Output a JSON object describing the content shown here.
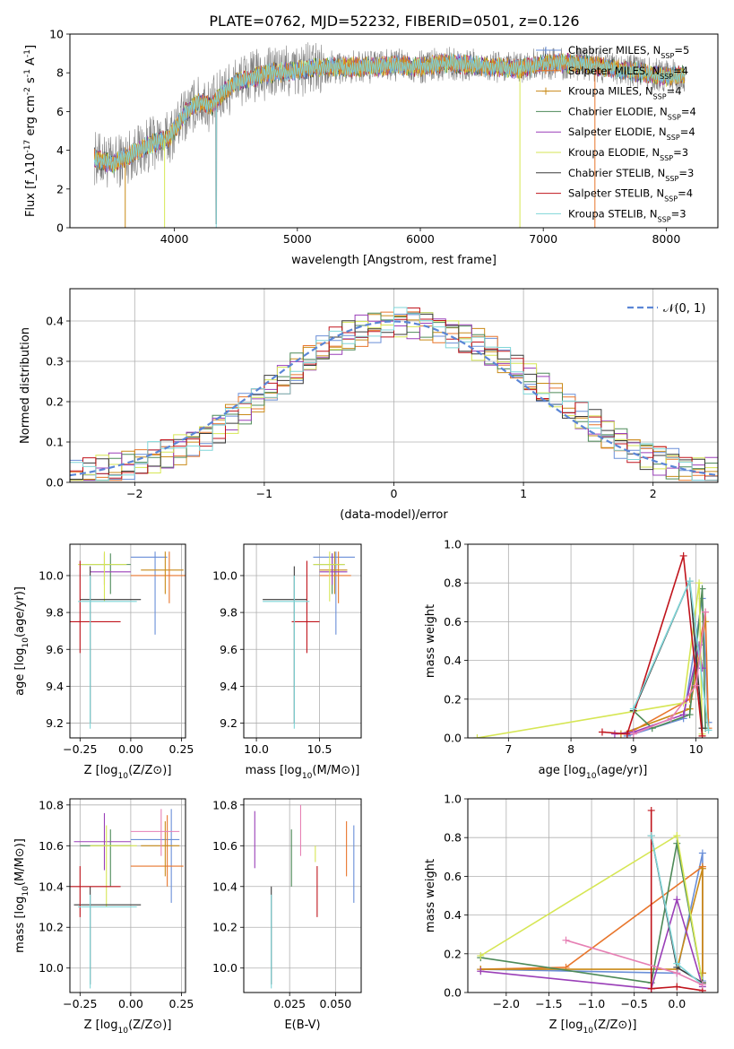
{
  "figure_title": "PLATE=0762, MJD=52232, FIBERID=0501, z=0.126",
  "colors": {
    "chabrier_miles": "#6a8fd8",
    "salpeter_miles": "#e8762c",
    "kroupa_miles": "#c98a18",
    "chabrier_elodie": "#4d8a58",
    "salpeter_elodie": "#9a3fb8",
    "kroupa_elodie": "#d6e654",
    "chabrier_stelib": "#3a3a3a",
    "salpeter_stelib": "#c0141c",
    "kroupa_stelib": "#7fd6d8",
    "pink": "#e680b4",
    "data_gray": "#808080",
    "normal_curve": "#5b86d6",
    "grid": "#b0b0b0"
  },
  "chart_data": [
    {
      "id": "spectrum",
      "type": "line",
      "title": "PLATE=0762, MJD=52232, FIBERID=0501, z=0.126",
      "xlabel": "wavelength [Angstrom, rest frame]",
      "ylabel": "Flux [f_λ10^-17 erg cm^-2 s^-1 A^-1]",
      "xlim": [
        3150,
        8420
      ],
      "ylim": [
        0,
        10
      ],
      "xticks": [
        "4000",
        "5000",
        "6000",
        "7000",
        "8000"
      ],
      "yticks": [
        "0",
        "2",
        "4",
        "6",
        "8",
        "10"
      ],
      "grid": false,
      "legend_position": "top-right",
      "continuum": {
        "x": [
          3350,
          3500,
          3650,
          3800,
          3950,
          4100,
          4200,
          4300,
          4400,
          4500,
          4600,
          4800,
          5000,
          5200,
          5400,
          5600,
          5800,
          6000,
          6200,
          6400,
          6600,
          6800,
          7000,
          7200,
          7400,
          7600,
          7800,
          8000,
          8150
        ],
        "y": [
          3.6,
          3.3,
          3.8,
          4.3,
          4.6,
          6.0,
          6.5,
          6.3,
          7.0,
          7.5,
          7.7,
          8.0,
          8.1,
          8.3,
          8.3,
          8.3,
          8.4,
          8.3,
          8.5,
          8.4,
          8.3,
          8.2,
          8.5,
          8.5,
          8.4,
          8.2,
          8.0,
          7.8,
          7.9
        ]
      },
      "legend": [
        {
          "label": "Chabrier MILES, N_SSP=5",
          "color_key": "chabrier_miles",
          "marker": true
        },
        {
          "label": "Salpeter MILES, N_SSP=4",
          "color_key": "salpeter_miles",
          "marker": true
        },
        {
          "label": "Kroupa MILES, N_SSP=4",
          "color_key": "kroupa_miles",
          "marker": true
        },
        {
          "label": "Chabrier ELODIE, N_SSP=4",
          "color_key": "chabrier_elodie",
          "marker": false
        },
        {
          "label": "Salpeter ELODIE, N_SSP=4",
          "color_key": "salpeter_elodie",
          "marker": false
        },
        {
          "label": "Kroupa ELODIE, N_SSP=3",
          "color_key": "kroupa_elodie",
          "marker": false
        },
        {
          "label": "Chabrier STELIB, N_SSP=3",
          "color_key": "chabrier_stelib",
          "marker": false
        },
        {
          "label": "Salpeter STELIB, N_SSP=4",
          "color_key": "salpeter_stelib",
          "marker": false
        },
        {
          "label": "Kroupa STELIB, N_SSP=3",
          "color_key": "kroupa_stelib",
          "marker": false
        }
      ]
    },
    {
      "id": "residuals",
      "type": "line",
      "xlabel": "(data-model)/error",
      "ylabel": "Normed distribution",
      "xlim": [
        -2.5,
        2.5
      ],
      "ylim": [
        0,
        0.48
      ],
      "xticks": [
        "−2",
        "−1",
        "0",
        "1",
        "2"
      ],
      "yticks": [
        "0.0",
        "0.1",
        "0.2",
        "0.3",
        "0.4"
      ],
      "grid": true,
      "legend_position": "top-right",
      "legend": [
        {
          "label": "𝒩(0, 1)",
          "color_key": "normal_curve"
        }
      ],
      "bin_width": 0.1,
      "series": [
        {
          "color_key": "chabrier_miles",
          "phase": 0.3
        },
        {
          "color_key": "salpeter_miles",
          "phase": 1.1
        },
        {
          "color_key": "kroupa_miles",
          "phase": 2.0
        },
        {
          "color_key": "chabrier_elodie",
          "phase": 2.7
        },
        {
          "color_key": "salpeter_elodie",
          "phase": 3.5
        },
        {
          "color_key": "kroupa_elodie",
          "phase": 4.4
        },
        {
          "color_key": "chabrier_stelib",
          "phase": 5.1
        },
        {
          "color_key": "salpeter_stelib",
          "phase": 5.9
        },
        {
          "color_key": "kroupa_stelib",
          "phase": 6.6
        }
      ]
    },
    {
      "id": "age-vs-Z",
      "type": "errorbar",
      "xlabel": "Z [log10(Z/Z⊙)]",
      "ylabel": "age  [log10(age/yr)]",
      "xlim": [
        -0.3,
        0.27
      ],
      "ylim": [
        9.12,
        10.17
      ],
      "xticks": [
        "−0.25",
        "0.00",
        "0.25"
      ],
      "yticks": [
        "9.2",
        "9.4",
        "9.6",
        "9.8",
        "10.0"
      ],
      "grid": true,
      "points": [
        {
          "c": "chabrier_miles",
          "x": 0.12,
          "xl": 0.0,
          "xh": 0.18,
          "y": 10.1,
          "yl": 9.68,
          "yh": 10.13
        },
        {
          "c": "salpeter_miles",
          "x": 0.19,
          "xl": 0.0,
          "xh": 0.27,
          "y": 10.0,
          "yl": 9.85,
          "yh": 10.13
        },
        {
          "c": "kroupa_miles",
          "x": 0.17,
          "xl": 0.05,
          "xh": 0.26,
          "y": 10.03,
          "yl": 9.9,
          "yh": 10.13
        },
        {
          "c": "chabrier_elodie",
          "x": -0.1,
          "xl": -0.25,
          "xh": 0.0,
          "y": 10.06,
          "yl": 9.9,
          "yh": 10.12
        },
        {
          "c": "salpeter_elodie",
          "x": -0.13,
          "xl": -0.2,
          "xh": 0.0,
          "y": 10.02,
          "yl": 9.95,
          "yh": 10.12
        },
        {
          "c": "kroupa_elodie",
          "x": -0.13,
          "xl": -0.26,
          "xh": -0.02,
          "y": 10.06,
          "yl": 9.86,
          "yh": 10.13
        },
        {
          "c": "chabrier_stelib",
          "x": -0.2,
          "xl": -0.25,
          "xh": 0.05,
          "y": 9.87,
          "yl": 9.2,
          "yh": 10.05
        },
        {
          "c": "salpeter_stelib",
          "x": -0.25,
          "xl": -0.3,
          "xh": -0.05,
          "y": 9.75,
          "yl": 9.58,
          "yh": 10.08
        },
        {
          "c": "kroupa_stelib",
          "x": -0.2,
          "xl": -0.26,
          "xh": 0.03,
          "y": 9.86,
          "yl": 9.17,
          "yh": 10.0
        }
      ]
    },
    {
      "id": "age-vs-mass",
      "type": "errorbar",
      "xlabel": "mass [log10(M/M⊙)]",
      "ylabel": "",
      "xlim": [
        9.9,
        10.83
      ],
      "ylim": [
        9.12,
        10.17
      ],
      "xticks": [
        "10.0",
        "10.5"
      ],
      "yticks": [
        "9.2",
        "9.4",
        "9.6",
        "9.8",
        "10.0"
      ],
      "grid": true,
      "points": [
        {
          "c": "chabrier_miles",
          "x": 10.63,
          "xl": 10.45,
          "xh": 10.78,
          "y": 10.1,
          "yl": 9.68,
          "yh": 10.13
        },
        {
          "c": "salpeter_miles",
          "x": 10.65,
          "xl": 10.5,
          "xh": 10.75,
          "y": 10.0,
          "yl": 9.85,
          "yh": 10.13
        },
        {
          "c": "kroupa_miles",
          "x": 10.62,
          "xl": 10.5,
          "xh": 10.72,
          "y": 10.03,
          "yl": 9.9,
          "yh": 10.13
        },
        {
          "c": "chabrier_elodie",
          "x": 10.6,
          "xl": 10.45,
          "xh": 10.7,
          "y": 10.06,
          "yl": 9.9,
          "yh": 10.12
        },
        {
          "c": "salpeter_elodie",
          "x": 10.6,
          "xl": 10.5,
          "xh": 10.72,
          "y": 10.02,
          "yl": 9.95,
          "yh": 10.12
        },
        {
          "c": "kroupa_elodie",
          "x": 10.58,
          "xl": 10.45,
          "xh": 10.7,
          "y": 10.06,
          "yl": 9.86,
          "yh": 10.13
        },
        {
          "c": "chabrier_stelib",
          "x": 10.3,
          "xl": 10.05,
          "xh": 10.4,
          "y": 9.87,
          "yl": 9.2,
          "yh": 10.05
        },
        {
          "c": "salpeter_stelib",
          "x": 10.4,
          "xl": 10.28,
          "xh": 10.5,
          "y": 9.75,
          "yl": 9.58,
          "yh": 10.08
        },
        {
          "c": "kroupa_stelib",
          "x": 10.3,
          "xl": 10.05,
          "xh": 10.42,
          "y": 9.86,
          "yl": 9.17,
          "yh": 10.0
        }
      ]
    },
    {
      "id": "weight-vs-age",
      "type": "line",
      "xlabel": "age  [log10(age/yr)]",
      "ylabel": "mass weight",
      "xlim": [
        6.35,
        10.35
      ],
      "ylim": [
        0,
        1
      ],
      "xticks": [
        "7",
        "8",
        "9",
        "10"
      ],
      "yticks": [
        "0.0",
        "0.2",
        "0.4",
        "0.6",
        "0.8",
        "1.0"
      ],
      "grid": true,
      "series": [
        {
          "c": "chabrier_miles",
          "x": [
            8.9,
            9.8,
            10.1,
            10.2
          ],
          "y": [
            0.01,
            0.1,
            0.72,
            0.08
          ]
        },
        {
          "c": "salpeter_miles",
          "x": [
            8.9,
            9.9,
            10.15,
            10.2
          ],
          "y": [
            0.02,
            0.2,
            0.65,
            0.05
          ]
        },
        {
          "c": "kroupa_miles",
          "x": [
            8.8,
            9.9,
            10.15
          ],
          "y": [
            0.02,
            0.15,
            0.6
          ]
        },
        {
          "c": "chabrier_elodie",
          "x": [
            9.0,
            9.3,
            9.9,
            10.1,
            10.15
          ],
          "y": [
            0.14,
            0.05,
            0.12,
            0.77,
            0.05
          ]
        },
        {
          "c": "salpeter_elodie",
          "x": [
            8.7,
            9.0,
            9.8,
            10.05,
            10.1
          ],
          "y": [
            0.02,
            0.03,
            0.12,
            0.48,
            0.36
          ]
        },
        {
          "c": "kroupa_elodie",
          "x": [
            6.5,
            9.8,
            10.05,
            10.1
          ],
          "y": [
            0.0,
            0.18,
            0.8,
            0.02
          ]
        },
        {
          "c": "chabrier_stelib",
          "x": [
            9.0,
            9.9,
            10.1
          ],
          "y": [
            0.14,
            0.81,
            0.05
          ]
        },
        {
          "c": "salpeter_stelib",
          "x": [
            8.5,
            8.9,
            9.8,
            10.1
          ],
          "y": [
            0.03,
            0.02,
            0.94,
            0.01
          ]
        },
        {
          "c": "kroupa_stelib",
          "x": [
            9.0,
            9.9,
            10.2
          ],
          "y": [
            0.15,
            0.81,
            0.04
          ]
        },
        {
          "c": "pink",
          "x": [
            9.0,
            9.6,
            10.0,
            10.15
          ],
          "y": [
            0.02,
            0.1,
            0.27,
            0.65
          ]
        }
      ]
    },
    {
      "id": "mass-vs-Z",
      "type": "errorbar",
      "xlabel": "Z [log10(Z/Z⊙)]",
      "ylabel": "mass [log10(M/M⊙)]",
      "xlim": [
        -0.3,
        0.27
      ],
      "ylim": [
        9.88,
        10.83
      ],
      "xticks": [
        "−0.25",
        "0.00",
        "0.25"
      ],
      "yticks": [
        "10.0",
        "10.2",
        "10.4",
        "10.6",
        "10.8"
      ],
      "grid": true,
      "points": [
        {
          "c": "chabrier_miles",
          "x": 0.2,
          "xl": 0.0,
          "xh": 0.24,
          "y": 10.63,
          "yl": 10.32,
          "yh": 10.78
        },
        {
          "c": "salpeter_miles",
          "x": 0.18,
          "xl": 0.0,
          "xh": 0.26,
          "y": 10.5,
          "yl": 10.4,
          "yh": 10.75
        },
        {
          "c": "kroupa_miles",
          "x": 0.17,
          "xl": 0.05,
          "xh": 0.24,
          "y": 10.6,
          "yl": 10.45,
          "yh": 10.72
        },
        {
          "c": "pink",
          "x": 0.15,
          "xl": 0.0,
          "xh": 0.24,
          "y": 10.67,
          "yl": 10.55,
          "yh": 10.78
        },
        {
          "c": "chabrier_elodie",
          "x": -0.1,
          "xl": -0.25,
          "xh": 0.0,
          "y": 10.6,
          "yl": 10.4,
          "yh": 10.68
        },
        {
          "c": "salpeter_elodie",
          "x": -0.13,
          "xl": -0.28,
          "xh": 0.0,
          "y": 10.62,
          "yl": 10.48,
          "yh": 10.76
        },
        {
          "c": "kroupa_elodie",
          "x": -0.12,
          "xl": -0.2,
          "xh": 0.03,
          "y": 10.6,
          "yl": 10.3,
          "yh": 10.7
        },
        {
          "c": "chabrier_stelib",
          "x": -0.2,
          "xl": -0.28,
          "xh": 0.05,
          "y": 10.31,
          "yl": 9.92,
          "yh": 10.4
        },
        {
          "c": "salpeter_stelib",
          "x": -0.25,
          "xl": -0.3,
          "xh": -0.05,
          "y": 10.4,
          "yl": 10.25,
          "yh": 10.5
        },
        {
          "c": "kroupa_stelib",
          "x": -0.2,
          "xl": -0.26,
          "xh": 0.03,
          "y": 10.3,
          "yl": 9.9,
          "yh": 10.36
        }
      ]
    },
    {
      "id": "mass-vs-EBV",
      "type": "errorbar",
      "xlabel": "E(B-V)",
      "ylabel": "",
      "xlim": [
        0.0,
        0.064
      ],
      "ylim": [
        9.88,
        10.83
      ],
      "xticks": [
        "0.025",
        "0.050"
      ],
      "yticks": [
        "10.0",
        "10.2",
        "10.4",
        "10.6",
        "10.8"
      ],
      "grid": true,
      "points": [
        {
          "c": "salpeter_elodie",
          "x": 0.006,
          "y": 10.63,
          "yl": 10.49,
          "yh": 10.77
        },
        {
          "c": "chabrier_stelib",
          "x": 0.015,
          "y": 10.31,
          "yl": 9.92,
          "yh": 10.4
        },
        {
          "c": "kroupa_stelib",
          "x": 0.015,
          "y": 10.3,
          "yl": 9.9,
          "yh": 10.36
        },
        {
          "c": "chabrier_elodie",
          "x": 0.026,
          "y": 10.6,
          "yl": 10.4,
          "yh": 10.68
        },
        {
          "c": "pink",
          "x": 0.031,
          "y": 10.67,
          "yl": 10.55,
          "yh": 10.8
        },
        {
          "c": "kroupa_elodie",
          "x": 0.039,
          "y": 10.57,
          "yl": 10.52,
          "yh": 10.6
        },
        {
          "c": "salpeter_stelib",
          "x": 0.04,
          "y": 10.4,
          "yl": 10.25,
          "yh": 10.5
        },
        {
          "c": "salpeter_miles",
          "x": 0.056,
          "y": 10.6,
          "yl": 10.45,
          "yh": 10.72
        },
        {
          "c": "chabrier_miles",
          "x": 0.06,
          "y": 10.52,
          "yl": 10.32,
          "yh": 10.7
        }
      ]
    },
    {
      "id": "weight-vs-Z",
      "type": "line",
      "xlabel": "Z [log10(Z/Z⊙)]",
      "ylabel": "mass weight",
      "xlim": [
        -2.45,
        0.48
      ],
      "ylim": [
        0,
        1
      ],
      "xticks": [
        "−2.0",
        "−1.5",
        "−1.0",
        "−0.5",
        "0.0"
      ],
      "yticks": [
        "0.0",
        "0.2",
        "0.4",
        "0.6",
        "0.8",
        "1.0"
      ],
      "grid": true,
      "series": [
        {
          "c": "chabrier_miles",
          "x": [
            -2.3,
            0.0,
            0.3,
            0.3
          ],
          "y": [
            0.12,
            0.1,
            0.72,
            0.06
          ]
        },
        {
          "c": "salpeter_miles",
          "x": [
            -2.3,
            -1.3,
            0.3,
            0.3
          ],
          "y": [
            0.12,
            0.13,
            0.65,
            0.1
          ]
        },
        {
          "c": "kroupa_miles",
          "x": [
            -2.3,
            0.0,
            0.3,
            0.3
          ],
          "y": [
            0.12,
            0.12,
            0.64,
            0.1
          ]
        },
        {
          "c": "chabrier_elodie",
          "x": [
            -2.3,
            -0.3,
            0.0,
            0.3
          ],
          "y": [
            0.18,
            0.05,
            0.77,
            0.05
          ]
        },
        {
          "c": "salpeter_elodie",
          "x": [
            -2.3,
            -0.3,
            0.0,
            0.3
          ],
          "y": [
            0.11,
            0.02,
            0.48,
            0.03
          ]
        },
        {
          "c": "kroupa_elodie",
          "x": [
            -2.3,
            0.0,
            0.3
          ],
          "y": [
            0.19,
            0.81,
            0.05
          ]
        },
        {
          "c": "chabrier_stelib",
          "x": [
            -0.3,
            0.0,
            0.3
          ],
          "y": [
            0.81,
            0.13,
            0.05
          ]
        },
        {
          "c": "salpeter_stelib",
          "x": [
            -0.3,
            -0.3,
            0.0,
            0.3
          ],
          "y": [
            0.94,
            0.02,
            0.03,
            0.01
          ]
        },
        {
          "c": "kroupa_stelib",
          "x": [
            -0.3,
            0.0,
            0.3
          ],
          "y": [
            0.81,
            0.15,
            0.04
          ]
        },
        {
          "c": "pink",
          "x": [
            -1.3,
            0.0,
            0.3
          ],
          "y": [
            0.27,
            0.1,
            0.04
          ]
        }
      ]
    }
  ]
}
